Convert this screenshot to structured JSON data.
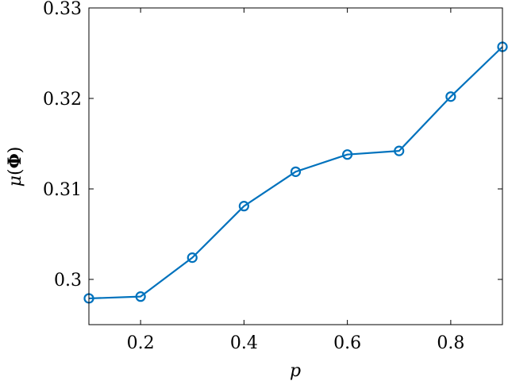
{
  "chart_data": {
    "type": "line",
    "xlabel": "p",
    "ylabel_parts": {
      "mu": "μ",
      "open": "(",
      "phi": "Φ",
      "close": ")"
    },
    "xlim": [
      0.1,
      0.9
    ],
    "ylim": [
      0.295,
      0.33
    ],
    "x_ticks": [
      0.2,
      0.4,
      0.6,
      0.8
    ],
    "x_tick_labels": [
      "0.2",
      "0.4",
      "0.6",
      "0.8"
    ],
    "y_ticks": [
      0.3,
      0.31,
      0.32,
      0.33
    ],
    "y_tick_labels": [
      "0.3",
      "0.31",
      "0.32",
      "0.33"
    ],
    "grid": false,
    "series": [
      {
        "color": "#0072bd",
        "marker": "circle",
        "x": [
          0.1,
          0.2,
          0.3,
          0.4,
          0.5,
          0.6,
          0.7,
          0.8,
          0.9
        ],
        "y": [
          0.2979,
          0.2981,
          0.3024,
          0.3081,
          0.3119,
          0.3138,
          0.3142,
          0.3202,
          0.3257
        ]
      }
    ]
  }
}
